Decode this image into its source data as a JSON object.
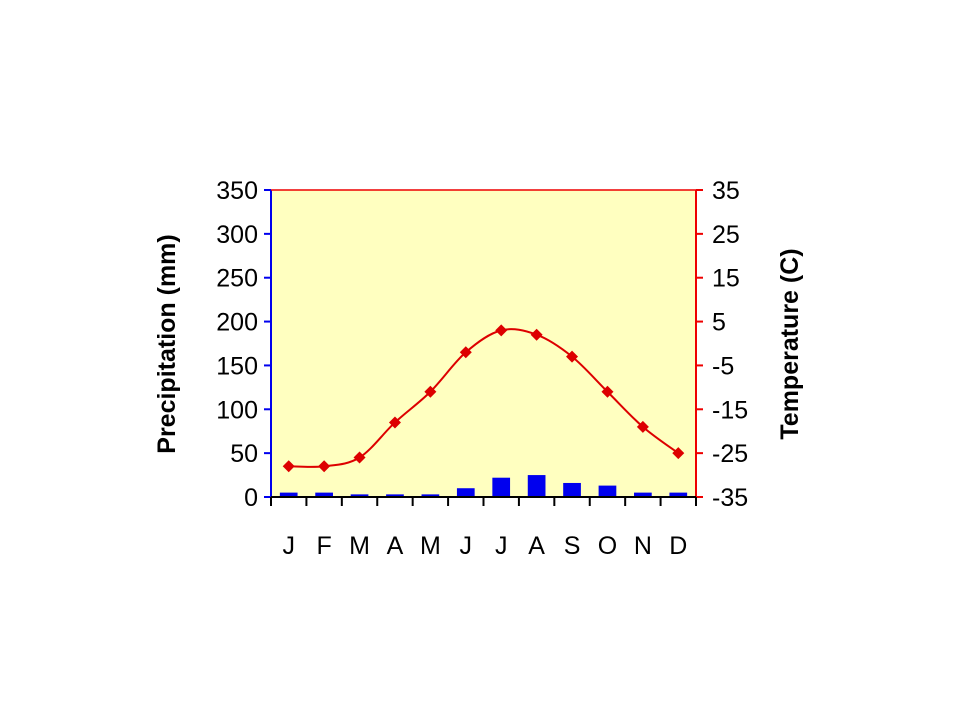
{
  "chart_data": {
    "type": "bar",
    "title": "",
    "categories": [
      "J",
      "F",
      "M",
      "A",
      "M",
      "J",
      "J",
      "A",
      "S",
      "O",
      "N",
      "D"
    ],
    "series": [
      {
        "type": "bar",
        "axis": "left",
        "color": "#0000ee",
        "values": [
          5,
          5,
          3,
          3,
          3,
          10,
          22,
          25,
          16,
          13,
          5,
          5
        ]
      },
      {
        "type": "line",
        "axis": "right",
        "color": "#dd0000",
        "marker": "diamond",
        "values": [
          -28,
          -28,
          -26,
          -18,
          -11,
          -2,
          3,
          2,
          -3,
          -11,
          -19,
          -25
        ]
      }
    ],
    "y_left": {
      "label": "Precipitation (mm)",
      "range": [
        0,
        350
      ],
      "ticks": [
        0,
        50,
        100,
        150,
        200,
        250,
        300,
        350
      ],
      "color": "#0000ee"
    },
    "y_right": {
      "label": "Temperature (C)",
      "range": [
        -35,
        35
      ],
      "ticks": [
        -35,
        -25,
        -15,
        -5,
        5,
        15,
        25,
        35
      ],
      "color": "#ee0000"
    },
    "plot_background": "#ffffc0",
    "grid": false,
    "legend": "none"
  }
}
